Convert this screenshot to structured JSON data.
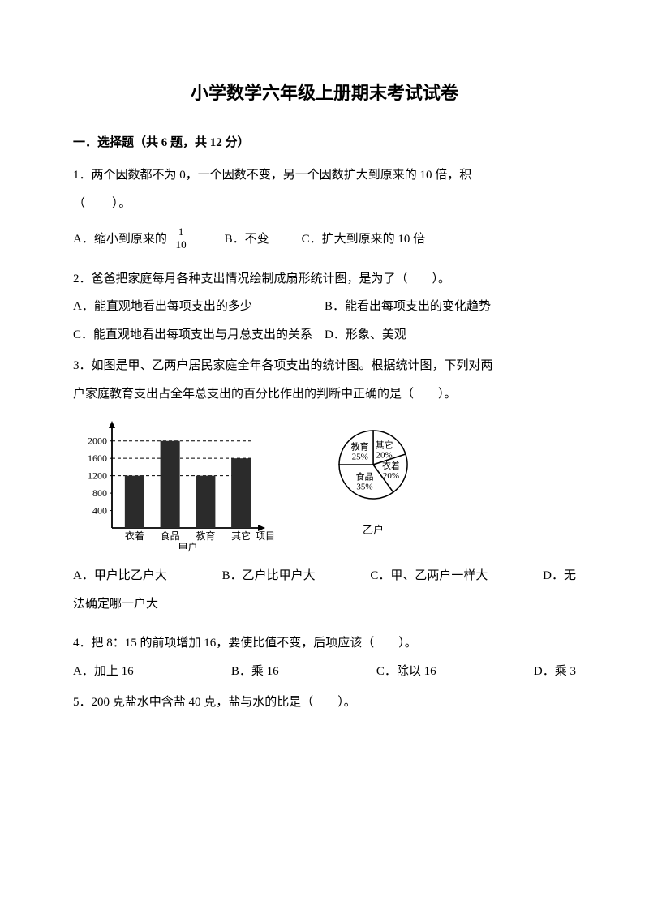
{
  "title": "小学数学六年级上册期末考试试卷",
  "section": "一．选择题（共 6 题，共 12 分）",
  "q1": {
    "stem_l1": "1．两个因数都不为 0，一个因数不变，另一个因数扩大到原来的 10 倍，积",
    "stem_l2": "（　　）。",
    "optA_prefix": "A．缩小到原来的",
    "frac_num": "1",
    "frac_den": "10",
    "optB": "B．不变",
    "optC": "C．扩大到原来的 10 倍"
  },
  "q2": {
    "stem": "2．爸爸把家庭每月各种支出情况绘制成扇形统计图，是为了（　　）。",
    "optA": "A．能直观地看出每项支出的多少",
    "optB": "B．能看出每项支出的变化趋势",
    "optC": "C．能直观地看出每项支出与月总支出的关系",
    "optD": "D．形象、美观"
  },
  "q3": {
    "stem_l1": "3．如图是甲、乙两户居民家庭全年各项支出的统计图。根据统计图，下列对两",
    "stem_l2": "户家庭教育支出占全年总支出的百分比作出的判断中正确的是（　　）。",
    "optA": "A．甲户比乙户大",
    "optB": "B．乙户比甲户大",
    "optC": "C．甲、乙两户一样大",
    "optD_prefix": "D．无",
    "optD_l2": "法确定哪一户大"
  },
  "q4": {
    "stem": "4．把 8：15 的前项增加 16，要使比值不变，后项应该（　　）。",
    "optA": "A．加上 16",
    "optB": "B．乘 16",
    "optC": "C．除以 16",
    "optD": "D．乘 3"
  },
  "q5": {
    "stem": "5．200 克盐水中含盐 40 克，盐与水的比是（　　）。"
  },
  "bar_chart": {
    "type": "bar",
    "categories": [
      "衣着",
      "食品",
      "教育",
      "其它"
    ],
    "values": [
      1200,
      2000,
      1200,
      1600
    ],
    "yticks": [
      400,
      800,
      1200,
      1600,
      2000
    ],
    "ymax": 2200,
    "bar_color": "#2b2b2b",
    "axis_color": "#000000",
    "dash": "4,3",
    "x_caption": "甲户",
    "x_right_label": "项目",
    "font_size": 12
  },
  "pie_chart": {
    "type": "pie",
    "slices": [
      {
        "label": "其它",
        "pct": "20%",
        "value": 20,
        "start": -90
      },
      {
        "label": "衣着",
        "pct": "20%",
        "value": 20,
        "start": -18
      },
      {
        "label": "食品",
        "pct": "35%",
        "value": 35,
        "start": 54
      },
      {
        "label": "教育",
        "pct": "25%",
        "value": 25,
        "start": 180
      }
    ],
    "stroke": "#000000",
    "fill": "#ffffff",
    "font_size": 11,
    "caption": "乙户"
  }
}
